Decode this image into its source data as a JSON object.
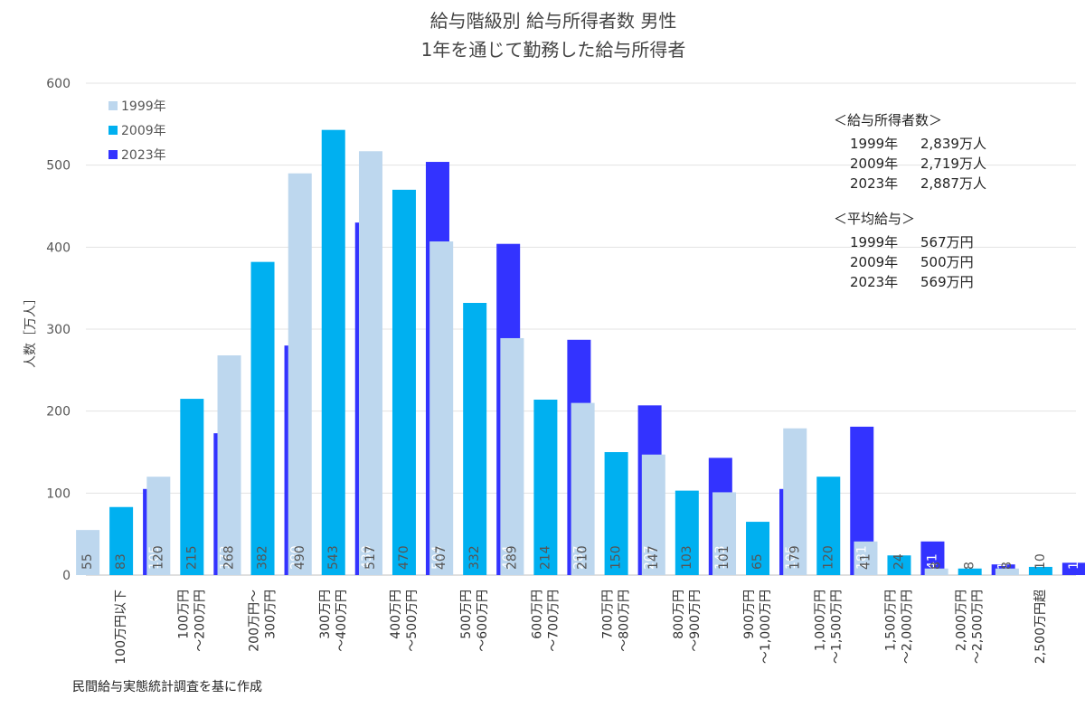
{
  "chart_data": {
    "type": "bar",
    "title_lines": [
      "給与階級別 給与所得者数 男性",
      "1年を通じて勤務した給与所得者"
    ],
    "ylabel": "人数［万人］",
    "ylim": [
      0,
      600
    ],
    "y_ticks": [
      0,
      100,
      200,
      300,
      400,
      500,
      600
    ],
    "grid": true,
    "legend_position": "top-left",
    "categories": [
      [
        "100万円以下"
      ],
      [
        "100万円",
        "～200万円"
      ],
      [
        "200万円～",
        "300万円"
      ],
      [
        "300万円",
        "～400万円"
      ],
      [
        "400万円",
        "～500万円"
      ],
      [
        "500万円",
        "～600万円"
      ],
      [
        "600万円",
        "～700万円"
      ],
      [
        "700万円",
        "～800万円"
      ],
      [
        "800万円",
        "～900万円"
      ],
      [
        "900万円",
        "～1,000万円"
      ],
      [
        "1,000万円",
        "～1,500万円"
      ],
      [
        "1,500万円",
        "～2,000万円"
      ],
      [
        "2,000万円",
        "～2,500万円"
      ],
      [
        "2,500万円超"
      ]
    ],
    "series": [
      {
        "name": "1999年",
        "color": "#bdd7ee",
        "label_color": "#555555",
        "values": [
          55,
          120,
          268,
          490,
          517,
          407,
          289,
          210,
          147,
          101,
          179,
          41,
          8,
          8
        ]
      },
      {
        "name": "2009年",
        "color": "#00b0f0",
        "label_color": "#555555",
        "values": [
          83,
          215,
          382,
          543,
          470,
          332,
          214,
          150,
          103,
          65,
          120,
          24,
          8,
          10
        ]
      },
      {
        "name": "2023年",
        "color": "#3333ff",
        "label_color": "#ffffff",
        "values": [
          105,
          173,
          280,
          430,
          504,
          404,
          287,
          207,
          143,
          105,
          181,
          41,
          13,
          15
        ]
      }
    ],
    "annotations": {
      "earners_title": "＜給与所得者数＞",
      "earners": [
        {
          "year": "1999年",
          "value": "2,839万人"
        },
        {
          "year": "2009年",
          "value": "2,719万人"
        },
        {
          "year": "2023年",
          "value": "2,887万人"
        }
      ],
      "salary_title": "＜平均給与＞",
      "salary": [
        {
          "year": "1999年",
          "value": "567万円"
        },
        {
          "year": "2009年",
          "value": "500万円"
        },
        {
          "year": "2023年",
          "value": "569万円"
        }
      ]
    },
    "source": "民間給与実態統計調査を基に作成"
  }
}
